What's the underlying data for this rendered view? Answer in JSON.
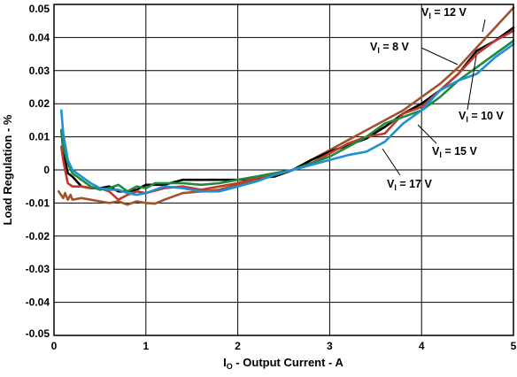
{
  "chart_data": {
    "type": "line",
    "xlabel": {
      "main": "I",
      "sub": "O",
      "rest": " - Output Current - A"
    },
    "ylabel": "Load Regulation - %",
    "xlim": [
      0,
      5
    ],
    "ylim": [
      -0.05,
      0.05
    ],
    "xticks": [
      "0",
      "1",
      "2",
      "3",
      "4",
      "5"
    ],
    "yticks": [
      "0.05",
      "0.04",
      "0.03",
      "0.02",
      "0.01",
      "0",
      "-0.01",
      "-0.02",
      "-0.03",
      "-0.04",
      "-0.05"
    ],
    "grid": true,
    "annotations": [
      {
        "main": "V",
        "sub": "I",
        "rest": " = 12 V"
      },
      {
        "main": "V",
        "sub": "I",
        "rest": " = 8 V"
      },
      {
        "main": "V",
        "sub": "I",
        "rest": " = 10 V"
      },
      {
        "main": "V",
        "sub": "I",
        "rest": " = 15 V"
      },
      {
        "main": "V",
        "sub": "I",
        "rest": " = 17 V"
      }
    ],
    "series": [
      {
        "color": "#a0522d",
        "x": [
          0.05,
          0.1,
          0.12,
          0.15,
          0.18,
          0.2,
          0.3,
          0.4,
          0.5,
          0.6,
          0.7,
          0.8,
          0.9,
          1.0,
          1.1,
          1.2,
          1.4,
          1.6,
          1.8,
          2.0,
          2.2,
          2.4,
          2.6,
          2.8,
          3.0,
          3.2,
          3.4,
          3.6,
          3.8,
          4.0,
          4.2,
          4.4,
          4.6,
          4.8,
          5.0
        ],
        "y": [
          -0.0065,
          -0.0085,
          -0.007,
          -0.009,
          -0.0075,
          -0.009,
          -0.0085,
          -0.009,
          -0.0095,
          -0.01,
          -0.0095,
          -0.0105,
          -0.0095,
          -0.01,
          -0.0102,
          -0.009,
          -0.007,
          -0.0065,
          -0.006,
          -0.0045,
          -0.003,
          -0.0015,
          0.0,
          0.003,
          0.006,
          0.009,
          0.012,
          0.015,
          0.018,
          0.022,
          0.026,
          0.031,
          0.037,
          0.043,
          0.049
        ]
      },
      {
        "color": "#000000",
        "x": [
          0.08,
          0.1,
          0.15,
          0.2,
          0.3,
          0.4,
          0.5,
          0.6,
          0.7,
          0.8,
          0.9,
          1.0,
          1.2,
          1.4,
          1.6,
          1.8,
          2.0,
          2.2,
          2.4,
          2.6,
          2.8,
          3.0,
          3.2,
          3.4,
          3.6,
          3.8,
          4.0,
          4.2,
          4.4,
          4.6,
          4.8,
          5.0
        ],
        "y": [
          0.012,
          0.006,
          -0.001,
          -0.002,
          -0.005,
          -0.0055,
          -0.0055,
          -0.005,
          -0.0065,
          -0.0065,
          -0.006,
          -0.0045,
          -0.0045,
          -0.003,
          -0.003,
          -0.003,
          -0.003,
          -0.0025,
          -0.002,
          0.0,
          0.003,
          0.0055,
          0.0075,
          0.0095,
          0.013,
          0.017,
          0.02,
          0.024,
          0.029,
          0.036,
          0.039,
          0.043
        ]
      },
      {
        "color": "#c0392b",
        "x": [
          0.08,
          0.1,
          0.12,
          0.15,
          0.2,
          0.3,
          0.4,
          0.5,
          0.6,
          0.7,
          0.8,
          0.9,
          1.0,
          1.2,
          1.4,
          1.6,
          1.8,
          2.0,
          2.2,
          2.4,
          2.6,
          2.8,
          3.0,
          3.2,
          3.4,
          3.6,
          3.8,
          4.0,
          4.2,
          4.4,
          4.6,
          4.8,
          5.0
        ],
        "y": [
          0.007,
          0.003,
          0.0,
          -0.004,
          -0.005,
          -0.005,
          -0.0055,
          -0.0055,
          -0.0065,
          -0.009,
          -0.0075,
          -0.0065,
          -0.007,
          -0.0055,
          -0.005,
          -0.006,
          -0.005,
          -0.004,
          -0.0025,
          -0.0015,
          0.0,
          0.002,
          0.005,
          0.008,
          0.01,
          0.011,
          0.017,
          0.019,
          0.024,
          0.029,
          0.035,
          0.039,
          0.042
        ]
      },
      {
        "color": "#1e8a3c",
        "x": [
          0.08,
          0.1,
          0.15,
          0.2,
          0.3,
          0.4,
          0.5,
          0.6,
          0.7,
          0.8,
          0.9,
          1.0,
          1.1,
          1.2,
          1.4,
          1.6,
          1.8,
          2.0,
          2.2,
          2.4,
          2.6,
          2.8,
          3.0,
          3.2,
          3.4,
          3.6,
          3.8,
          4.0,
          4.2,
          4.4,
          4.6,
          4.8,
          5.0
        ],
        "y": [
          0.012,
          0.007,
          0.002,
          -0.001,
          -0.003,
          -0.005,
          -0.006,
          -0.0055,
          -0.0045,
          -0.0065,
          -0.005,
          -0.0055,
          -0.004,
          -0.004,
          -0.004,
          -0.0045,
          -0.004,
          -0.003,
          -0.002,
          -0.001,
          0.0,
          0.002,
          0.004,
          0.007,
          0.01,
          0.014,
          0.016,
          0.018,
          0.022,
          0.027,
          0.031,
          0.035,
          0.039
        ]
      },
      {
        "color": "#1e90d6",
        "x": [
          0.08,
          0.1,
          0.15,
          0.2,
          0.3,
          0.4,
          0.5,
          0.6,
          0.7,
          0.8,
          0.9,
          1.0,
          1.2,
          1.4,
          1.6,
          1.8,
          2.0,
          2.2,
          2.4,
          2.6,
          2.8,
          3.0,
          3.2,
          3.4,
          3.6,
          3.8,
          4.0,
          4.2,
          4.4,
          4.6,
          4.8,
          5.0
        ],
        "y": [
          0.018,
          0.011,
          0.003,
          0.0,
          -0.002,
          -0.004,
          -0.0055,
          -0.006,
          -0.006,
          -0.007,
          -0.0075,
          -0.007,
          -0.005,
          -0.0055,
          -0.0065,
          -0.0065,
          -0.005,
          -0.0035,
          -0.0015,
          0.0,
          0.0015,
          0.003,
          0.0045,
          0.0055,
          0.0085,
          0.014,
          0.018,
          0.024,
          0.027,
          0.029,
          0.034,
          0.038
        ]
      }
    ]
  }
}
